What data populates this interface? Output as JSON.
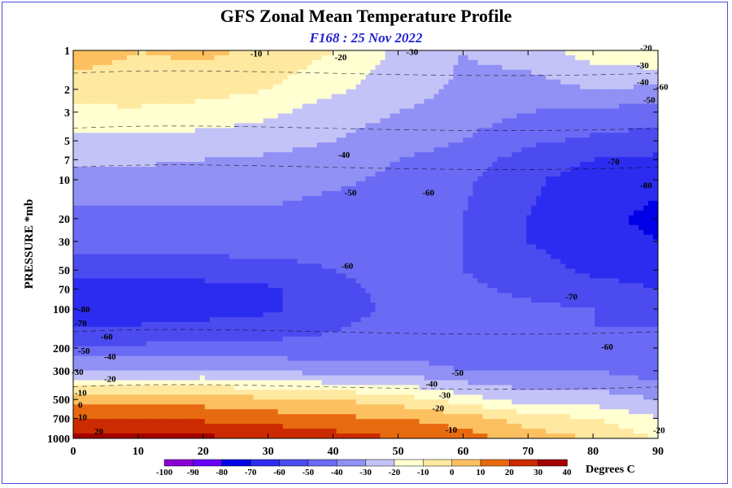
{
  "chart_data": {
    "type": "heatmap",
    "title": "GFS Zonal Mean Temperature Profile",
    "subtitle": "F168 : 25 Nov 2022",
    "ylabel": "PRESSURE *mb",
    "xlabel": "",
    "x_ticks": [
      0,
      10,
      20,
      30,
      40,
      50,
      60,
      70,
      80,
      90
    ],
    "y_ticks": [
      1,
      2,
      3,
      5,
      7,
      10,
      20,
      30,
      50,
      70,
      100,
      200,
      300,
      500,
      700,
      1000
    ],
    "y_scale": "log",
    "y_inverted": true,
    "xlim": [
      0,
      90
    ],
    "ylim": [
      1000,
      1
    ],
    "colorbar": {
      "levels": [
        -100,
        -90,
        -80,
        -70,
        -60,
        -50,
        -40,
        -30,
        -20,
        -10,
        0,
        10,
        20,
        30,
        40
      ],
      "colors": [
        "#8a00d4",
        "#6600ff",
        "#0000e8",
        "#2c2cf0",
        "#4b4bf0",
        "#6a6af5",
        "#9090f5",
        "#c3c3f8",
        "#ffffd2",
        "#ffe8a0",
        "#fcc060",
        "#e86a10",
        "#cc2a00",
        "#a40000",
        "#7a0a00",
        "#8b6a2a"
      ],
      "units": "Degrees C"
    },
    "cells": {
      "x": [
        0,
        10,
        20,
        30,
        40,
        50,
        60,
        70,
        80,
        90
      ],
      "p": [
        1,
        2,
        3,
        5,
        7,
        10,
        20,
        30,
        50,
        70,
        100,
        200,
        300,
        500,
        700,
        1000
      ],
      "values": [
        [
          -5,
          -10,
          -8,
          -12,
          -20,
          -32,
          -40,
          -35,
          -25,
          -20
        ],
        [
          -15,
          -14,
          -15,
          -20,
          -28,
          -35,
          -42,
          -45,
          -40,
          -42
        ],
        [
          -22,
          -22,
          -25,
          -28,
          -35,
          -40,
          -45,
          -50,
          -52,
          -55
        ],
        [
          -33,
          -33,
          -33,
          -35,
          -40,
          -45,
          -50,
          -58,
          -62,
          -65
        ],
        [
          -38,
          -38,
          -40,
          -42,
          -45,
          -50,
          -55,
          -64,
          -70,
          -72
        ],
        [
          -45,
          -45,
          -45,
          -45,
          -48,
          -52,
          -58,
          -68,
          -75,
          -78
        ],
        [
          -52,
          -52,
          -52,
          -52,
          -55,
          -58,
          -60,
          -70,
          -78,
          -82
        ],
        [
          -55,
          -55,
          -55,
          -57,
          -58,
          -60,
          -60,
          -70,
          -76,
          -80
        ],
        [
          -65,
          -65,
          -65,
          -62,
          -60,
          -58,
          -60,
          -66,
          -72,
          -75
        ],
        [
          -74,
          -74,
          -74,
          -72,
          -62,
          -58,
          -58,
          -62,
          -66,
          -70
        ],
        [
          -80,
          -78,
          -75,
          -72,
          -64,
          -58,
          -56,
          -58,
          -60,
          -62
        ],
        [
          -58,
          -58,
          -57,
          -57,
          -57,
          -56,
          -55,
          -58,
          -60,
          -58
        ],
        [
          -40,
          -40,
          -38,
          -40,
          -45,
          -45,
          -50,
          -50,
          -50,
          -55
        ],
        [
          -5,
          -5,
          -5,
          -8,
          -10,
          -15,
          -25,
          -35,
          -35,
          -40
        ],
        [
          10,
          10,
          8,
          5,
          2,
          0,
          -5,
          -15,
          -20,
          -30
        ],
        [
          25,
          25,
          22,
          20,
          15,
          10,
          5,
          -5,
          -10,
          -20
        ]
      ]
    },
    "contour_labels": [
      {
        "text": "-10",
        "x": 27,
        "p": 1.05
      },
      {
        "text": "-20",
        "x": 40,
        "p": 1.12
      },
      {
        "text": "-30",
        "x": 51,
        "p": 1.02
      },
      {
        "text": "-20",
        "x": 87,
        "p": 0.95
      },
      {
        "text": "-30",
        "x": 86.5,
        "p": 1.3
      },
      {
        "text": "-40",
        "x": 86.5,
        "p": 1.75
      },
      {
        "text": "-50",
        "x": 87.5,
        "p": 2.4
      },
      {
        "text": "-60",
        "x": 89.5,
        "p": 1.9
      },
      {
        "text": "-40",
        "x": 40.5,
        "p": 6.4
      },
      {
        "text": "-50",
        "x": 41.5,
        "p": 12.5
      },
      {
        "text": "-60",
        "x": 53.5,
        "p": 12.5
      },
      {
        "text": "-70",
        "x": 82,
        "p": 7.2
      },
      {
        "text": "-80",
        "x": 87,
        "p": 11
      },
      {
        "text": "-60",
        "x": 41,
        "p": 46
      },
      {
        "text": "-70",
        "x": 75.5,
        "p": 80
      },
      {
        "text": "-80",
        "x": 0.5,
        "p": 100
      },
      {
        "text": "-70",
        "x": 0,
        "p": 128
      },
      {
        "text": "-60",
        "x": 4,
        "p": 163
      },
      {
        "text": "-60",
        "x": 81,
        "p": 195
      },
      {
        "text": "-50",
        "x": 0.5,
        "p": 210
      },
      {
        "text": "-40",
        "x": 4.5,
        "p": 232
      },
      {
        "text": "-30",
        "x": -0.5,
        "p": 305
      },
      {
        "text": "-50",
        "x": 58,
        "p": 310
      },
      {
        "text": "-20",
        "x": 4.5,
        "p": 345
      },
      {
        "text": "-40",
        "x": 54,
        "p": 375
      },
      {
        "text": "-10",
        "x": 0,
        "p": 440
      },
      {
        "text": "-30",
        "x": 56,
        "p": 460
      },
      {
        "text": "0",
        "x": 0.5,
        "p": 550
      },
      {
        "text": "-20",
        "x": 55,
        "p": 580
      },
      {
        "text": "10",
        "x": 0.5,
        "p": 680
      },
      {
        "text": "20",
        "x": 3,
        "p": 880
      },
      {
        "text": "-10",
        "x": 57,
        "p": 850
      },
      {
        "text": "-20",
        "x": 89,
        "p": 860
      }
    ]
  }
}
